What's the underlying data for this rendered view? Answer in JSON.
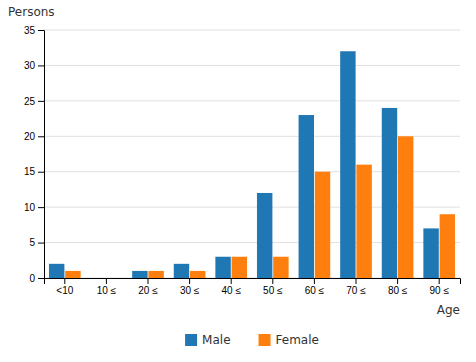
{
  "chart_data": {
    "type": "bar",
    "x_label": "Age",
    "y_label": "Persons",
    "categories": [
      "<10",
      "10 ≤",
      "20 ≤",
      "30 ≤",
      "40 ≤",
      "50 ≤",
      "60 ≤",
      "70 ≤",
      "80 ≤",
      "90 ≤"
    ],
    "series": [
      {
        "name": "Male",
        "values": [
          2,
          0,
          1,
          2,
          3,
          12,
          23,
          32,
          24,
          7
        ]
      },
      {
        "name": "Female",
        "values": [
          1,
          0,
          1,
          1,
          3,
          3,
          15,
          16,
          20,
          9
        ]
      }
    ],
    "ylim": [
      0,
      35
    ],
    "yticks": [
      0,
      5,
      10,
      15,
      20,
      25,
      30,
      35
    ],
    "grid": true,
    "legend": "bottom"
  }
}
